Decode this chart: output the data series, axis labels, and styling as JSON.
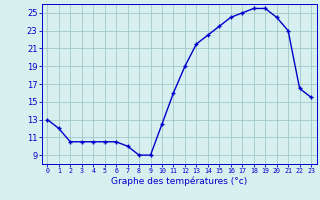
{
  "hours": [
    0,
    1,
    2,
    3,
    4,
    5,
    6,
    7,
    8,
    9,
    10,
    11,
    12,
    13,
    14,
    15,
    16,
    17,
    18,
    19,
    20,
    21,
    22,
    23
  ],
  "temps": [
    13.0,
    12.0,
    10.5,
    10.5,
    10.5,
    10.5,
    10.5,
    10.0,
    9.0,
    9.0,
    12.5,
    16.0,
    19.0,
    21.5,
    22.5,
    23.5,
    24.5,
    25.0,
    25.5,
    25.5,
    24.5,
    23.0,
    16.5,
    15.5
  ],
  "line_color": "#0000cd",
  "marker": "+",
  "bg_color": "#d8eff0",
  "grid_color": "#a0c8c8",
  "xlabel": "Graphe des températures (°c)",
  "xlabel_color": "#0000cd",
  "tick_color": "#0000cd",
  "axis_color": "#0000cd",
  "ylim": [
    8,
    26
  ],
  "xlim": [
    -0.5,
    23.5
  ],
  "yticks": [
    9,
    11,
    13,
    15,
    17,
    19,
    21,
    23,
    25
  ],
  "xticks": [
    0,
    1,
    2,
    3,
    4,
    5,
    6,
    7,
    8,
    9,
    10,
    11,
    12,
    13,
    14,
    15,
    16,
    17,
    18,
    19,
    20,
    21,
    22,
    23
  ]
}
